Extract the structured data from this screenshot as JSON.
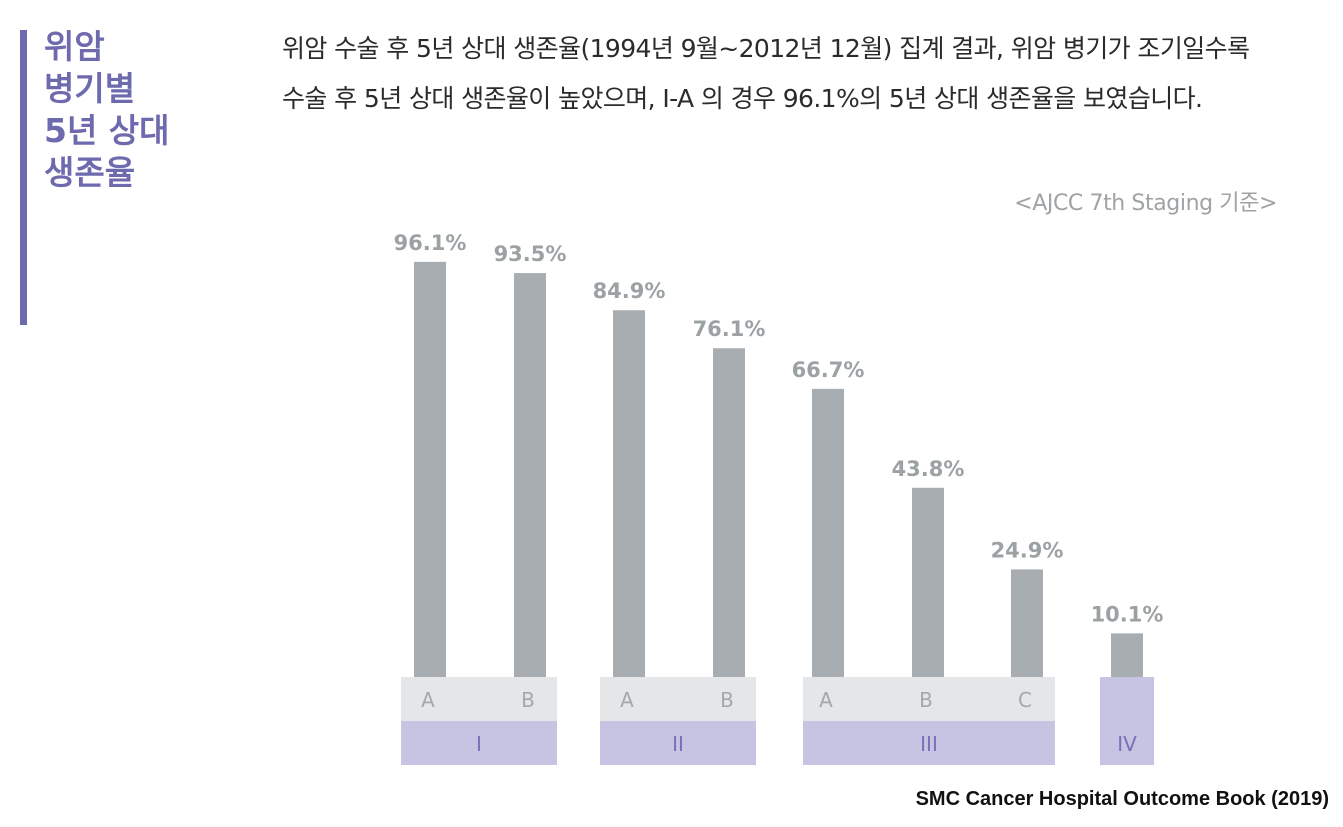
{
  "sidebar": {
    "title_lines": [
      "위암",
      "병기별",
      "5년 상대",
      "생존율"
    ]
  },
  "description": {
    "line1": "위암 수술 후 5년 상대 생존율(1994년 9월~2012년 12월) 집계 결과, 위암 병기가 조기일수록",
    "line2": "수술 후 5년 상대 생존율이 높았으며, Ⅰ-A 의 경우 96.1%의 5년 상대 생존율을 보였습니다."
  },
  "criteria_note": "<AJCC 7th Staging 기준>",
  "source": "SMC Cancer Hospital Outcome Book (2019)",
  "colors": {
    "accent": "#6e6aae",
    "bar": "#a7adb0",
    "value_label": "#9ca1a4",
    "substage_band": "#e5e6e8",
    "substage_text": "#a4a8ab",
    "stage_band": "#c7c3e3",
    "stage_text": "#7672b8"
  },
  "chart_data": {
    "type": "bar",
    "title": "",
    "xlabel": "",
    "ylabel": "",
    "ylim": [
      0,
      100
    ],
    "grid": false,
    "categories": [
      "A",
      "B",
      "A",
      "B",
      "A",
      "B",
      "C",
      ""
    ],
    "groups": [
      "I",
      "I",
      "II",
      "II",
      "III",
      "III",
      "III",
      "IV"
    ],
    "values": [
      96.1,
      93.5,
      84.9,
      76.1,
      66.7,
      43.8,
      24.9,
      10.1
    ],
    "value_labels": [
      "96.1%",
      "93.5%",
      "84.9%",
      "76.1%",
      "66.7%",
      "43.8%",
      "24.9%",
      "10.1%"
    ],
    "stages": [
      {
        "label": "I",
        "substages": [
          "A",
          "B"
        ]
      },
      {
        "label": "II",
        "substages": [
          "A",
          "B"
        ]
      },
      {
        "label": "III",
        "substages": [
          "A",
          "B",
          "C"
        ]
      },
      {
        "label": "IV",
        "substages": []
      }
    ]
  }
}
